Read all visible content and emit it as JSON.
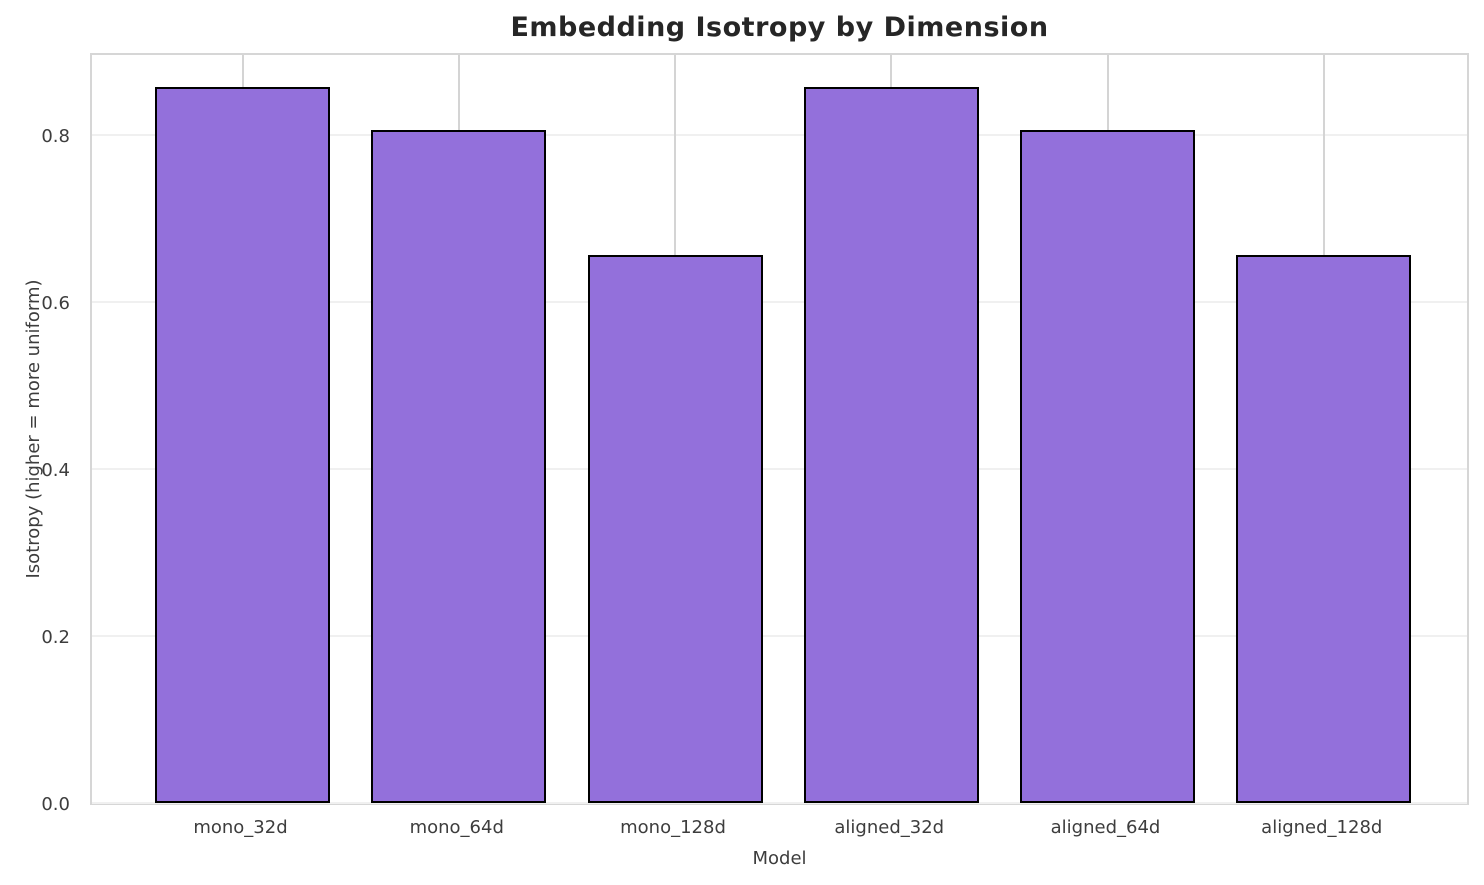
{
  "chart_data": {
    "type": "bar",
    "title": "Embedding Isotropy by Dimension",
    "xlabel": "Model",
    "ylabel": "Isotropy (higher = more uniform)",
    "categories": [
      "mono_32d",
      "mono_64d",
      "mono_128d",
      "aligned_32d",
      "aligned_64d",
      "aligned_128d"
    ],
    "values": [
      0.857,
      0.806,
      0.656,
      0.857,
      0.806,
      0.656
    ],
    "ylim": [
      0.0,
      0.9
    ],
    "yticks": [
      0.0,
      0.2,
      0.4,
      0.6,
      0.8
    ],
    "ytick_labels": [
      "0.0",
      "0.2",
      "0.4",
      "0.6",
      "0.8"
    ],
    "grid": true,
    "legend_position": "none",
    "bar_color": "#9370DB",
    "bar_edge_color": "#000000"
  },
  "colors": {
    "background": "#ffffff",
    "title_text": "#262626",
    "tick_text": "#3d3d3d",
    "grid_horizontal": "#f0f0f0",
    "grid_vertical": "#d4d4d4",
    "spine": "#d6d6d6"
  }
}
